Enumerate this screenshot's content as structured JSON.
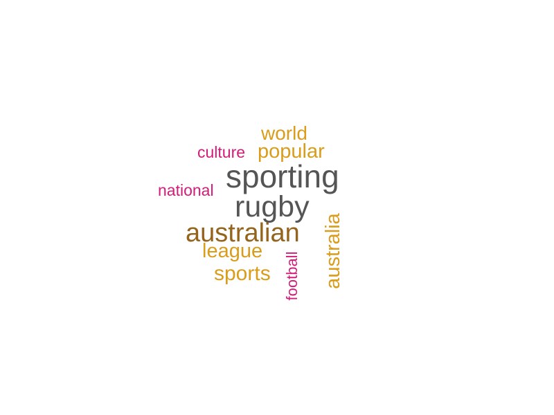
{
  "word_cloud": {
    "words": [
      {
        "text": "world",
        "color": "#d99c1b"
      },
      {
        "text": "culture",
        "color": "#d31b78"
      },
      {
        "text": "popular",
        "color": "#d99c1b"
      },
      {
        "text": "sporting",
        "color": "#555555"
      },
      {
        "text": "national",
        "color": "#d31b78"
      },
      {
        "text": "rugby",
        "color": "#555555"
      },
      {
        "text": "australian",
        "color": "#94641d"
      },
      {
        "text": "league",
        "color": "#d99c1b"
      },
      {
        "text": "sports",
        "color": "#d99c1b"
      },
      {
        "text": "football",
        "color": "#d31b78",
        "orientation": "vertical"
      },
      {
        "text": "australia",
        "color": "#d99c1b",
        "orientation": "vertical"
      }
    ]
  }
}
